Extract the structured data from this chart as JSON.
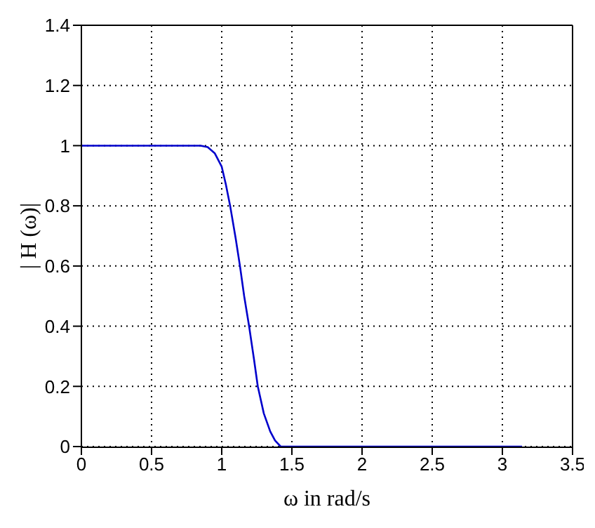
{
  "chart_data": {
    "type": "line",
    "xlabel": "ω in rad/s",
    "ylabel": "| H (ω)|",
    "x": [
      0,
      0.5,
      0.85,
      0.9,
      0.95,
      1.0,
      1.03,
      1.06,
      1.1,
      1.13,
      1.16,
      1.195,
      1.23,
      1.257,
      1.3,
      1.346,
      1.38,
      1.42,
      1.5,
      2,
      2.5,
      3.14
    ],
    "series": [
      {
        "color": "#0000cc",
        "values": [
          1,
          1,
          1,
          0.995,
          0.975,
          0.93,
          0.87,
          0.8,
          0.69,
          0.6,
          0.5,
          0.4,
          0.29,
          0.2,
          0.11,
          0.05,
          0.02,
          0,
          0,
          0,
          0,
          0
        ]
      }
    ],
    "xlim": [
      0,
      3.5
    ],
    "xticks": [
      0,
      0.5,
      1,
      1.5,
      2,
      2.5,
      3,
      3.5
    ],
    "ylim": [
      0,
      1.4
    ],
    "yticks": [
      0,
      0.2,
      0.4,
      0.6,
      0.8,
      1,
      1.2,
      1.4
    ],
    "grid": true,
    "marker": "none",
    "line_style": "solid"
  }
}
